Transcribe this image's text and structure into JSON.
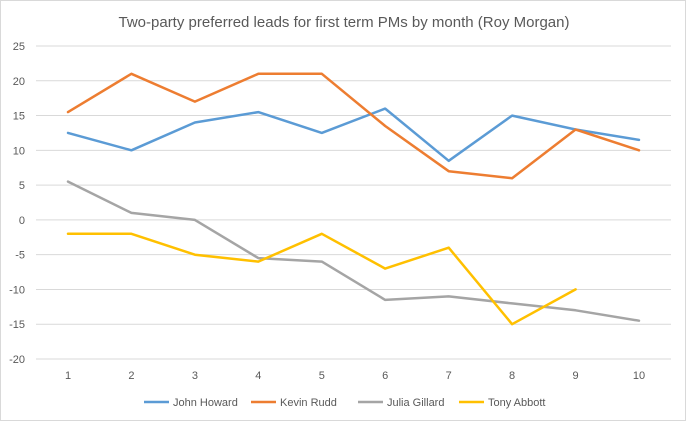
{
  "chart_data": {
    "type": "line",
    "title": "Two-party preferred leads for first term PMs by month (Roy Morgan)",
    "xlabel": "",
    "ylabel": "",
    "categories": [
      "1",
      "2",
      "3",
      "4",
      "5",
      "6",
      "7",
      "8",
      "9",
      "10"
    ],
    "ylim": [
      -20,
      25
    ],
    "yticks": [
      "25",
      "20",
      "15",
      "10",
      "5",
      "0",
      "-5",
      "-10",
      "-15",
      "-20"
    ],
    "ytick_values": [
      25,
      20,
      15,
      10,
      5,
      0,
      -5,
      -10,
      -15,
      -20
    ],
    "grid": true,
    "legend_position": "bottom",
    "series": [
      {
        "name": "John Howard",
        "color": "#5b9bd5",
        "values": [
          12.5,
          10,
          14,
          15.5,
          12.5,
          16,
          8.5,
          15,
          13,
          11.5
        ]
      },
      {
        "name": "Kevin Rudd",
        "color": "#ed7d31",
        "values": [
          15.5,
          21,
          17,
          21,
          21,
          13.5,
          7,
          6,
          13,
          10
        ]
      },
      {
        "name": "Julia Gillard",
        "color": "#a5a5a5",
        "values": [
          5.5,
          1,
          0,
          -5.5,
          -6,
          -11.5,
          -11,
          -12,
          -13,
          -14.5
        ]
      },
      {
        "name": "Tony Abbott",
        "color": "#ffc000",
        "values": [
          -2,
          -2,
          -5,
          -6,
          -2,
          -7,
          -4,
          -15,
          -10,
          null
        ]
      }
    ]
  }
}
